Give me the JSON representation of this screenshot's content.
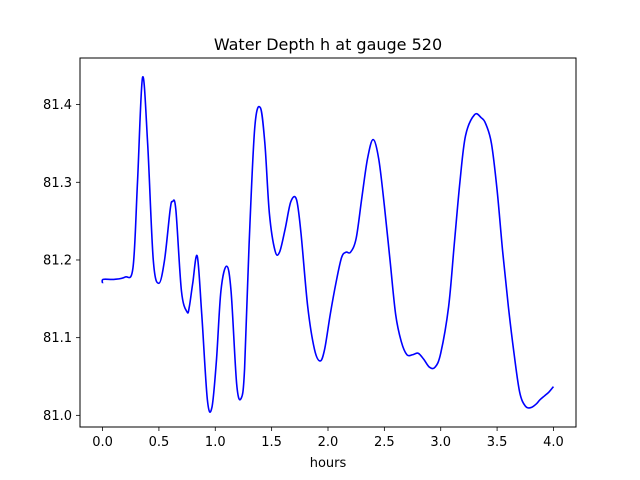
{
  "chart_data": {
    "type": "line",
    "title": "Water Depth h at gauge 520",
    "xlabel": "hours",
    "ylabel": "",
    "xlim": [
      -0.2,
      4.2
    ],
    "ylim": [
      80.985,
      81.46
    ],
    "x_ticks": [
      0.0,
      0.5,
      1.0,
      1.5,
      2.0,
      2.5,
      3.0,
      3.5,
      4.0
    ],
    "x_tick_labels": [
      "0.0",
      "0.5",
      "1.0",
      "1.5",
      "2.0",
      "2.5",
      "3.0",
      "3.5",
      "4.0"
    ],
    "y_ticks": [
      81.0,
      81.1,
      81.2,
      81.3,
      81.4
    ],
    "y_tick_labels": [
      "81.0",
      "81.1",
      "81.2",
      "81.3",
      "81.4"
    ],
    "grid": false,
    "series": [
      {
        "color": "#0000ff",
        "x": [
          0.0,
          0.005,
          0.1,
          0.2,
          0.27,
          0.31,
          0.355,
          0.4,
          0.45,
          0.5,
          0.55,
          0.6,
          0.62,
          0.65,
          0.7,
          0.75,
          0.77,
          0.8,
          0.84,
          0.88,
          0.93,
          0.97,
          1.01,
          1.05,
          1.1,
          1.14,
          1.19,
          1.23,
          1.26,
          1.3,
          1.35,
          1.4,
          1.44,
          1.48,
          1.53,
          1.57,
          1.62,
          1.67,
          1.72,
          1.76,
          1.82,
          1.88,
          1.93,
          1.97,
          2.02,
          2.07,
          2.12,
          2.16,
          2.2,
          2.25,
          2.3,
          2.35,
          2.4,
          2.45,
          2.5,
          2.55,
          2.6,
          2.65,
          2.7,
          2.75,
          2.8,
          2.85,
          2.9,
          2.95,
          3.0,
          3.07,
          3.12,
          3.17,
          3.22,
          3.3,
          3.36,
          3.4,
          3.45,
          3.5,
          3.55,
          3.6,
          3.65,
          3.7,
          3.75,
          3.8,
          3.85,
          3.88,
          3.92,
          3.96,
          4.0
        ],
        "y": [
          81.17,
          81.175,
          81.175,
          81.178,
          81.19,
          81.3,
          81.435,
          81.35,
          81.2,
          81.17,
          81.2,
          81.265,
          81.275,
          81.265,
          81.16,
          81.133,
          81.14,
          81.17,
          81.205,
          81.13,
          81.02,
          81.01,
          81.07,
          81.16,
          81.192,
          81.16,
          81.04,
          81.022,
          81.06,
          81.22,
          81.37,
          81.396,
          81.35,
          81.26,
          81.212,
          81.21,
          81.24,
          81.275,
          81.278,
          81.235,
          81.14,
          81.085,
          81.07,
          81.085,
          81.13,
          81.17,
          81.203,
          81.21,
          81.21,
          81.228,
          81.28,
          81.33,
          81.355,
          81.33,
          81.27,
          81.2,
          81.13,
          81.095,
          81.078,
          81.078,
          81.08,
          81.072,
          81.062,
          81.062,
          81.08,
          81.14,
          81.22,
          81.3,
          81.36,
          81.387,
          81.383,
          81.375,
          81.35,
          81.29,
          81.21,
          81.14,
          81.08,
          81.03,
          81.012,
          81.01,
          81.015,
          81.02,
          81.025,
          81.03,
          81.037
        ]
      }
    ]
  }
}
